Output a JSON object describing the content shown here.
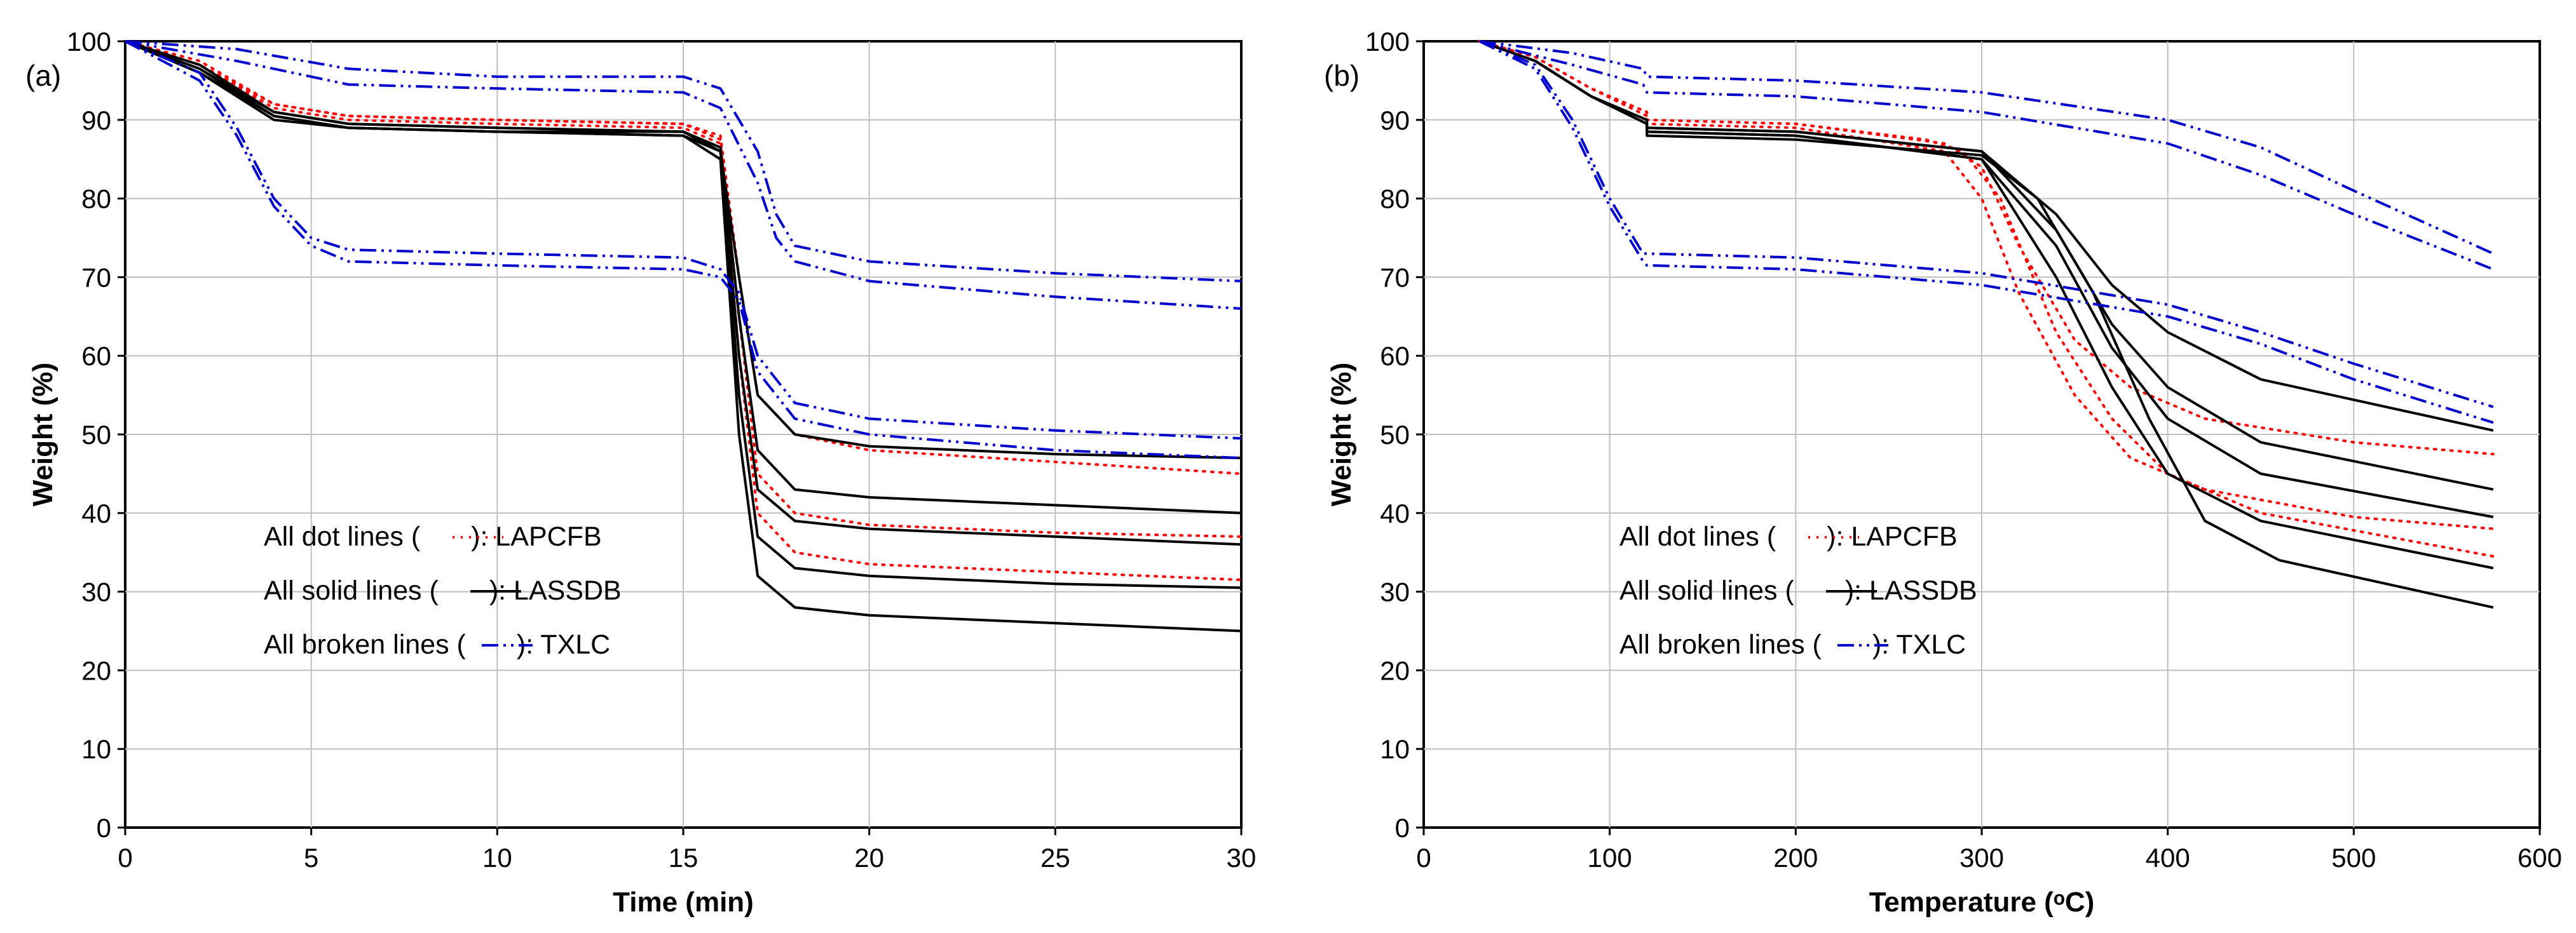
{
  "colors": {
    "lapcfb": "#ff0000",
    "lassdb": "#000000",
    "txlc": "#0000cc",
    "grid": "#bfbfbf",
    "axis": "#000000"
  },
  "legend": [
    {
      "key": "lapcfb",
      "prefix": "All dot lines (",
      "suffix": "): LAPCFB"
    },
    {
      "key": "lassdb",
      "prefix": "All solid lines (",
      "suffix": "): LASSDB"
    },
    {
      "key": "txlc",
      "prefix": "All broken lines (",
      "suffix": "): TXLC"
    }
  ],
  "chart_data": [
    {
      "panel_label": "(a)",
      "type": "line",
      "xlabel": "Time (min)",
      "ylabel": "Weight (%)",
      "xlim": [
        0,
        30
      ],
      "ylim": [
        0,
        100
      ],
      "xticks": [
        0,
        5,
        10,
        15,
        20,
        25,
        30
      ],
      "yticks": [
        0,
        10,
        20,
        30,
        40,
        50,
        60,
        70,
        80,
        90,
        100
      ],
      "grid": true,
      "series": [
        {
          "name": "LAPCFB 1",
          "group": "lapcfb",
          "x": [
            0,
            2,
            4,
            6,
            10,
            15,
            16,
            16.5,
            17,
            18,
            20,
            25,
            30
          ],
          "y": [
            100,
            97,
            92,
            90.5,
            90,
            89.5,
            88,
            70,
            55,
            50,
            48,
            46.5,
            45
          ]
        },
        {
          "name": "LAPCFB 2",
          "group": "lapcfb",
          "x": [
            0,
            2,
            4,
            6,
            10,
            15,
            16,
            16.5,
            17,
            18,
            20,
            25,
            30
          ],
          "y": [
            100,
            97,
            91.5,
            90,
            89.5,
            89,
            87,
            65,
            45,
            40,
            38.5,
            37.5,
            37
          ]
        },
        {
          "name": "LAPCFB 3",
          "group": "lapcfb",
          "x": [
            0,
            2,
            4,
            6,
            10,
            15,
            16,
            16.5,
            17,
            18,
            20,
            25,
            30
          ],
          "y": [
            100,
            97.5,
            92,
            90.5,
            90,
            89.5,
            87.5,
            60,
            40,
            35,
            33.5,
            32.5,
            31.5
          ]
        },
        {
          "name": "LASSDB 1",
          "group": "lassdb",
          "x": [
            0,
            2,
            4,
            6,
            10,
            15,
            16,
            16.5,
            17,
            18,
            20,
            25,
            30
          ],
          "y": [
            100,
            96,
            90,
            89,
            88.5,
            88.5,
            86,
            70,
            55,
            50,
            48.5,
            47.5,
            47
          ]
        },
        {
          "name": "LASSDB 2",
          "group": "lassdb",
          "x": [
            0,
            2,
            4,
            6,
            10,
            15,
            16,
            16.5,
            17,
            18,
            20,
            25,
            30
          ],
          "y": [
            100,
            96.5,
            91,
            89.5,
            89,
            88.5,
            86.5,
            65,
            48,
            43,
            42,
            41,
            40
          ]
        },
        {
          "name": "LASSDB 3",
          "group": "lassdb",
          "x": [
            0,
            2,
            4,
            6,
            10,
            15,
            16,
            16.5,
            17,
            18,
            20,
            25,
            30
          ],
          "y": [
            100,
            96,
            90.5,
            89,
            88.5,
            88,
            86,
            60,
            43,
            39,
            38,
            37,
            36
          ]
        },
        {
          "name": "LASSDB 4",
          "group": "lassdb",
          "x": [
            0,
            2,
            4,
            6,
            10,
            15,
            16,
            16.5,
            17,
            18,
            20,
            25,
            30
          ],
          "y": [
            100,
            97,
            91,
            89.5,
            89,
            88.5,
            86,
            55,
            37,
            33,
            32,
            31,
            30.5
          ]
        },
        {
          "name": "LASSDB 5",
          "group": "lassdb",
          "x": [
            0,
            2,
            4,
            6,
            10,
            15,
            16,
            16.5,
            17,
            18,
            20,
            25,
            30
          ],
          "y": [
            100,
            96.5,
            90.5,
            89,
            88.5,
            88,
            85,
            50,
            32,
            28,
            27,
            26,
            25
          ]
        },
        {
          "name": "TXLC 1",
          "group": "txlc",
          "x": [
            0,
            3,
            6,
            10,
            15,
            16,
            17,
            17.5,
            18,
            20,
            25,
            30
          ],
          "y": [
            100,
            99,
            96.5,
            95.5,
            95.5,
            94,
            86,
            78,
            74,
            72,
            70.5,
            69.5
          ]
        },
        {
          "name": "TXLC 2",
          "group": "txlc",
          "x": [
            0,
            3,
            6,
            10,
            15,
            16,
            17,
            17.5,
            18,
            20,
            25,
            30
          ],
          "y": [
            100,
            97.5,
            94.5,
            94,
            93.5,
            91.5,
            82,
            75,
            72,
            69.5,
            67.5,
            66
          ]
        },
        {
          "name": "TXLC 3",
          "group": "txlc",
          "x": [
            0,
            2,
            3,
            4,
            5,
            6,
            10,
            15,
            16,
            16.5,
            17,
            18,
            20,
            25,
            30
          ],
          "y": [
            100,
            96,
            89,
            80,
            75,
            73.5,
            73,
            72.5,
            71,
            68,
            60,
            54,
            52,
            50.5,
            49.5
          ]
        },
        {
          "name": "TXLC 4",
          "group": "txlc",
          "x": [
            0,
            2,
            3,
            4,
            5,
            6,
            10,
            15,
            16,
            16.5,
            17,
            18,
            20,
            25,
            30
          ],
          "y": [
            100,
            95,
            88,
            79,
            74,
            72,
            71.5,
            71,
            70,
            67,
            58,
            52,
            50,
            48,
            47
          ]
        }
      ]
    },
    {
      "panel_label": "(b)",
      "type": "line",
      "xlabel": "Temperature (ᵒC)",
      "ylabel": "Weight (%)",
      "xlim": [
        0,
        600
      ],
      "ylim": [
        0,
        100
      ],
      "xticks": [
        0,
        100,
        200,
        300,
        400,
        500,
        600
      ],
      "yticks": [
        0,
        10,
        20,
        30,
        40,
        50,
        60,
        70,
        80,
        90,
        100
      ],
      "grid": true,
      "series": [
        {
          "name": "LAPCFB 1",
          "group": "lapcfb",
          "x": [
            30,
            60,
            90,
            120,
            120,
            200,
            280,
            300,
            320,
            350,
            380,
            420,
            500,
            575
          ],
          "y": [
            100,
            98,
            94,
            91,
            90,
            89.5,
            87,
            84,
            74,
            62,
            56,
            52,
            49,
            47.5
          ]
        },
        {
          "name": "LAPCFB 2",
          "group": "lapcfb",
          "x": [
            30,
            60,
            90,
            120,
            120,
            200,
            280,
            300,
            320,
            350,
            380,
            420,
            500,
            575
          ],
          "y": [
            100,
            98,
            94,
            90.5,
            89.5,
            89,
            86,
            80,
            68,
            55,
            47,
            43,
            39.5,
            38
          ]
        },
        {
          "name": "LAPCFB 3",
          "group": "lapcfb",
          "x": [
            30,
            60,
            90,
            120,
            120,
            200,
            270,
            290,
            310,
            340,
            370,
            400,
            450,
            575
          ],
          "y": [
            100,
            98,
            94,
            91,
            90,
            89.5,
            87.5,
            86,
            80,
            63,
            52,
            45,
            40,
            34.5
          ]
        },
        {
          "name": "LASSDB 1",
          "group": "lassdb",
          "x": [
            30,
            60,
            90,
            120,
            120,
            200,
            300,
            340,
            370,
            400,
            450,
            575
          ],
          "y": [
            100,
            97.5,
            93,
            90,
            89,
            88.5,
            86,
            78,
            69,
            63,
            57,
            50.5
          ]
        },
        {
          "name": "LASSDB 2",
          "group": "lassdb",
          "x": [
            30,
            60,
            90,
            120,
            120,
            200,
            300,
            340,
            370,
            400,
            450,
            575
          ],
          "y": [
            100,
            97.5,
            93,
            90,
            89,
            88.5,
            86,
            76,
            64,
            56,
            49,
            43
          ]
        },
        {
          "name": "LASSDB 3",
          "group": "lassdb",
          "x": [
            30,
            60,
            90,
            120,
            120,
            200,
            300,
            340,
            370,
            400,
            450,
            575
          ],
          "y": [
            100,
            97.5,
            93,
            89.5,
            88.5,
            88,
            85,
            74,
            61,
            52,
            45,
            39.5
          ]
        },
        {
          "name": "LASSDB 4",
          "group": "lassdb",
          "x": [
            30,
            60,
            90,
            120,
            120,
            200,
            300,
            340,
            370,
            400,
            450,
            575
          ],
          "y": [
            100,
            97.5,
            93,
            89.5,
            88.5,
            88,
            85,
            70,
            56,
            45,
            39,
            33
          ]
        },
        {
          "name": "LASSDB 5",
          "group": "lassdb",
          "x": [
            30,
            60,
            90,
            120,
            120,
            200,
            300,
            330,
            360,
            390,
            420,
            460,
            575
          ],
          "y": [
            100,
            97.5,
            93,
            89.5,
            88,
            87.5,
            85.5,
            80,
            68,
            52,
            39,
            34,
            28
          ]
        },
        {
          "name": "TXLC 1",
          "group": "txlc",
          "x": [
            30,
            80,
            118,
            120,
            200,
            300,
            400,
            450,
            500,
            575
          ],
          "y": [
            100,
            98.5,
            96.5,
            95.5,
            95,
            93.5,
            90,
            86.5,
            81,
            73
          ]
        },
        {
          "name": "TXLC 2",
          "group": "txlc",
          "x": [
            30,
            80,
            118,
            120,
            200,
            300,
            400,
            450,
            500,
            575
          ],
          "y": [
            100,
            97,
            94.5,
            93.5,
            93,
            91,
            87,
            83,
            78,
            71
          ]
        },
        {
          "name": "TXLC 3",
          "group": "txlc",
          "x": [
            30,
            60,
            80,
            100,
            118,
            120,
            200,
            300,
            400,
            450,
            500,
            575
          ],
          "y": [
            100,
            97,
            90,
            80,
            73,
            73,
            72.5,
            70.5,
            66.5,
            63,
            59,
            53.5
          ]
        },
        {
          "name": "TXLC 4",
          "group": "txlc",
          "x": [
            30,
            60,
            80,
            100,
            118,
            120,
            200,
            300,
            400,
            450,
            500,
            575
          ],
          "y": [
            100,
            96.5,
            89,
            79,
            72,
            71.5,
            71,
            69,
            65,
            61.5,
            57,
            51.5
          ]
        }
      ]
    }
  ]
}
